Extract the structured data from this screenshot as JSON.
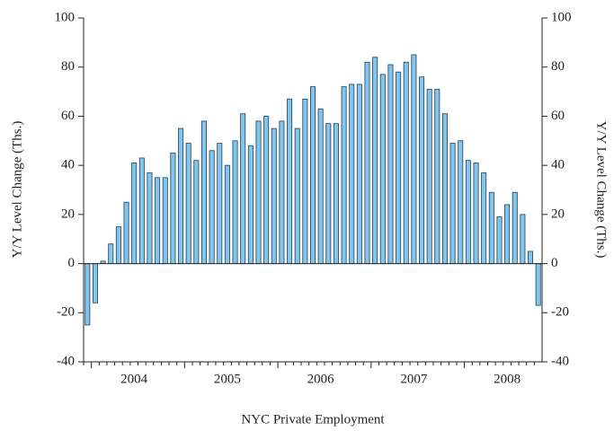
{
  "chart_data": {
    "type": "bar",
    "xlabel": "NYC Private Employment",
    "ylabel": "Y/Y Level Change (Ths.)",
    "y2label": "Y/Y Level Change (Ths.)",
    "categories": [
      null,
      null,
      null,
      null,
      null,
      null,
      "2004",
      null,
      null,
      null,
      null,
      null,
      null,
      null,
      null,
      null,
      null,
      null,
      "2005",
      null,
      null,
      null,
      null,
      null,
      null,
      null,
      null,
      null,
      null,
      null,
      "2006",
      null,
      null,
      null,
      null,
      null,
      null,
      null,
      null,
      null,
      null,
      null,
      "2007",
      null,
      null,
      null,
      null,
      null,
      null,
      null,
      null,
      null,
      null,
      null,
      "2008",
      null,
      null,
      null,
      null
    ],
    "values": [
      -25,
      -16,
      1,
      8,
      15,
      25,
      41,
      43,
      37,
      35,
      35,
      45,
      55,
      49,
      42,
      58,
      46,
      49,
      40,
      50,
      61,
      48,
      58,
      60,
      55,
      58,
      67,
      55,
      67,
      72,
      63,
      57,
      57,
      72,
      73,
      73,
      82,
      84,
      77,
      81,
      78,
      82,
      85,
      76,
      71,
      71,
      61,
      49,
      50,
      42,
      41,
      37,
      29,
      19,
      24,
      29,
      20,
      5,
      -17
    ],
    "color": "#82c6ec",
    "ylim": [
      -40,
      100
    ],
    "yticks": [
      -40,
      -20,
      0,
      20,
      40,
      60,
      80,
      100
    ],
    "y2lim": [
      -40,
      100
    ],
    "y2ticks": [
      -40,
      -20,
      0,
      20,
      40,
      60,
      80,
      100
    ]
  }
}
